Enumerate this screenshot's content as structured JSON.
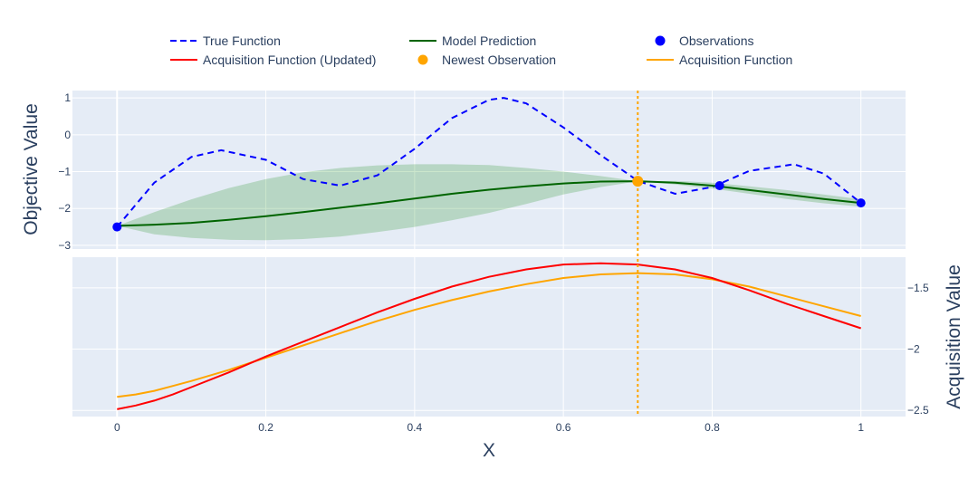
{
  "chart_data": {
    "type": "line",
    "legend": {
      "placement": "top",
      "entries": [
        {
          "name": "True Function",
          "color": "#0000ff",
          "style": "dash"
        },
        {
          "name": "Model Prediction",
          "color": "#006400",
          "style": "solid"
        },
        {
          "name": "Observations",
          "color": "#0000ff",
          "style": "marker"
        },
        {
          "name": "Acquisition Function (Updated)",
          "color": "#ff0000",
          "style": "solid"
        },
        {
          "name": "Newest Observation",
          "color": "#ffa500",
          "style": "marker"
        },
        {
          "name": "Acquisition Function",
          "color": "#ffa500",
          "style": "solid"
        }
      ]
    },
    "xlabel": "X",
    "xlim": [
      -0.06,
      1.06
    ],
    "xticks": [
      0,
      0.2,
      0.4,
      0.6,
      0.8,
      1
    ],
    "xtick_labels": [
      "0",
      "0.2",
      "0.4",
      "0.6",
      "0.8",
      "1"
    ],
    "newest_x": 0.7,
    "top": {
      "ylabel": "Objective Value",
      "ylim": [
        -3.1,
        1.2
      ],
      "yticks": [
        -3,
        -2,
        -1,
        0,
        1
      ],
      "ytick_labels": [
        "−3",
        "−2",
        "−1",
        "0",
        "1"
      ],
      "true_function": {
        "x": [
          0,
          0.05,
          0.1,
          0.14,
          0.2,
          0.25,
          0.3,
          0.35,
          0.4,
          0.45,
          0.5,
          0.52,
          0.55,
          0.6,
          0.65,
          0.7,
          0.75,
          0.8,
          0.85,
          0.91,
          0.95,
          1.0
        ],
        "y": [
          -2.5,
          -1.3,
          -0.6,
          -0.42,
          -0.68,
          -1.2,
          -1.38,
          -1.1,
          -0.38,
          0.45,
          0.95,
          1.0,
          0.85,
          0.2,
          -0.55,
          -1.25,
          -1.6,
          -1.42,
          -0.98,
          -0.8,
          -1.05,
          -1.85
        ]
      },
      "model_prediction": {
        "x": [
          0,
          0.05,
          0.1,
          0.15,
          0.2,
          0.25,
          0.3,
          0.35,
          0.4,
          0.45,
          0.5,
          0.55,
          0.6,
          0.65,
          0.7,
          0.75,
          0.8,
          0.85,
          0.9,
          0.95,
          1.0
        ],
        "y": [
          -2.47,
          -2.44,
          -2.39,
          -2.31,
          -2.21,
          -2.1,
          -1.98,
          -1.86,
          -1.73,
          -1.6,
          -1.49,
          -1.4,
          -1.32,
          -1.27,
          -1.26,
          -1.3,
          -1.38,
          -1.5,
          -1.62,
          -1.74,
          -1.85
        ],
        "upper": [
          -2.47,
          -2.1,
          -1.75,
          -1.45,
          -1.2,
          -1.02,
          -0.9,
          -0.83,
          -0.8,
          -0.8,
          -0.82,
          -0.9,
          -1.0,
          -1.12,
          -1.26,
          -1.25,
          -1.3,
          -1.4,
          -1.5,
          -1.62,
          -1.75
        ],
        "lower": [
          -2.47,
          -2.7,
          -2.8,
          -2.85,
          -2.86,
          -2.83,
          -2.76,
          -2.64,
          -2.5,
          -2.32,
          -2.12,
          -1.88,
          -1.62,
          -1.42,
          -1.26,
          -1.35,
          -1.46,
          -1.6,
          -1.74,
          -1.86,
          -1.95
        ]
      },
      "observations": {
        "x": [
          0,
          0.81,
          1.0
        ],
        "y": [
          -2.5,
          -1.38,
          -1.85
        ]
      },
      "newest_observation": {
        "x": [
          0.7
        ],
        "y": [
          -1.26
        ]
      }
    },
    "bottom": {
      "ylabel": "Acquisition Value",
      "ylim": [
        -2.55,
        -1.25
      ],
      "yticks": [
        -2.5,
        -2,
        -1.5
      ],
      "ytick_labels": [
        "−2.5",
        "−2",
        "−1.5"
      ],
      "acquisition_function": {
        "x": [
          0,
          0.025,
          0.05,
          0.075,
          0.1,
          0.15,
          0.2,
          0.25,
          0.3,
          0.35,
          0.4,
          0.45,
          0.5,
          0.55,
          0.6,
          0.65,
          0.7,
          0.75,
          0.8,
          0.85,
          0.9,
          0.95,
          1.0
        ],
        "y": [
          -2.39,
          -2.37,
          -2.34,
          -2.3,
          -2.26,
          -2.17,
          -2.07,
          -1.97,
          -1.87,
          -1.77,
          -1.68,
          -1.6,
          -1.53,
          -1.47,
          -1.42,
          -1.39,
          -1.38,
          -1.39,
          -1.43,
          -1.49,
          -1.57,
          -1.65,
          -1.73
        ]
      },
      "acquisition_function_updated": {
        "x": [
          0,
          0.025,
          0.05,
          0.075,
          0.1,
          0.15,
          0.2,
          0.25,
          0.3,
          0.35,
          0.4,
          0.45,
          0.5,
          0.55,
          0.6,
          0.65,
          0.7,
          0.75,
          0.8,
          0.85,
          0.9,
          0.95,
          1.0
        ],
        "y": [
          -2.49,
          -2.46,
          -2.42,
          -2.37,
          -2.31,
          -2.19,
          -2.06,
          -1.94,
          -1.82,
          -1.7,
          -1.59,
          -1.49,
          -1.41,
          -1.35,
          -1.31,
          -1.3,
          -1.31,
          -1.35,
          -1.42,
          -1.52,
          -1.63,
          -1.73,
          -1.83
        ]
      }
    }
  }
}
